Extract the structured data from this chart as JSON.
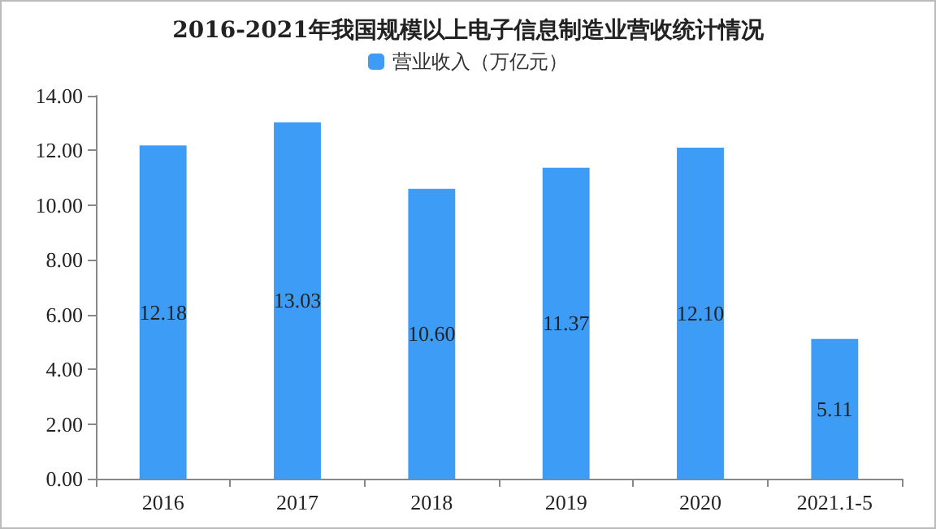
{
  "chart_data": {
    "type": "bar",
    "title": "2016-2021年我国规模以上电子信息制造业营收统计情况",
    "categories": [
      "2016",
      "2017",
      "2018",
      "2019",
      "2020",
      "2021.1-5"
    ],
    "series": [
      {
        "name": "营业收入（万亿元）",
        "color": "#3d9cf5",
        "values": [
          12.18,
          13.03,
          10.6,
          11.37,
          12.1,
          5.11
        ],
        "value_labels": [
          "12.18",
          "13.03",
          "10.60",
          "11.37",
          "12.10",
          "5.11"
        ]
      }
    ],
    "ylim": [
      0,
      14
    ],
    "yticks": [
      {
        "value": 0,
        "label": "0.00"
      },
      {
        "value": 2,
        "label": "2.00"
      },
      {
        "value": 4,
        "label": "4.00"
      },
      {
        "value": 6,
        "label": "6.00"
      },
      {
        "value": 8,
        "label": "8.00"
      },
      {
        "value": 10,
        "label": "10.00"
      },
      {
        "value": 12,
        "label": "12.00"
      },
      {
        "value": 14,
        "label": "14.00"
      }
    ],
    "grid": false,
    "legend": "top"
  }
}
